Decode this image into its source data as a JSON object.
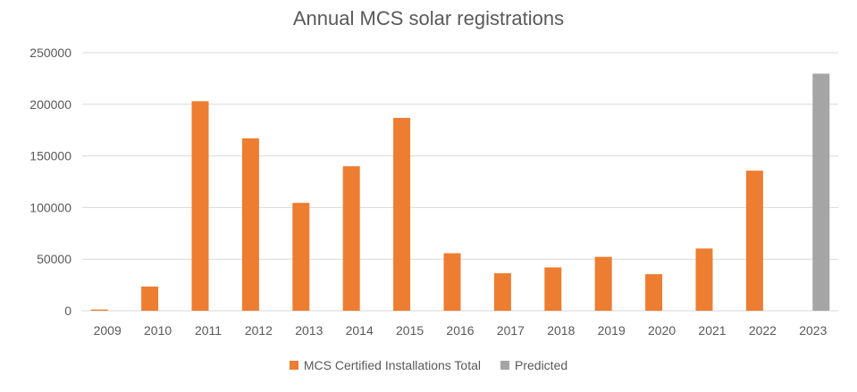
{
  "chart_data": {
    "type": "bar",
    "title": "Annual MCS solar registrations",
    "xlabel": "",
    "ylabel": "",
    "ylim": [
      0,
      250000
    ],
    "yticks": [
      "0",
      "50000",
      "100000",
      "150000",
      "200000",
      "250000"
    ],
    "grid": true,
    "legend_position": "bottom",
    "categories": [
      "2009",
      "2010",
      "2011",
      "2012",
      "2013",
      "2014",
      "2015",
      "2016",
      "2017",
      "2018",
      "2019",
      "2020",
      "2021",
      "2022",
      "2023"
    ],
    "series": [
      {
        "name": "MCS Certified Installations Total",
        "color": "#ED7D31",
        "values": [
          1200,
          23500,
          203000,
          167000,
          104500,
          140000,
          186800,
          55700,
          36300,
          42000,
          52200,
          35400,
          60300,
          135700,
          null
        ]
      },
      {
        "name": "Predicted",
        "color": "#A5A5A5",
        "values": [
          null,
          null,
          null,
          null,
          null,
          null,
          null,
          null,
          null,
          null,
          null,
          null,
          null,
          null,
          229700
        ]
      }
    ]
  }
}
